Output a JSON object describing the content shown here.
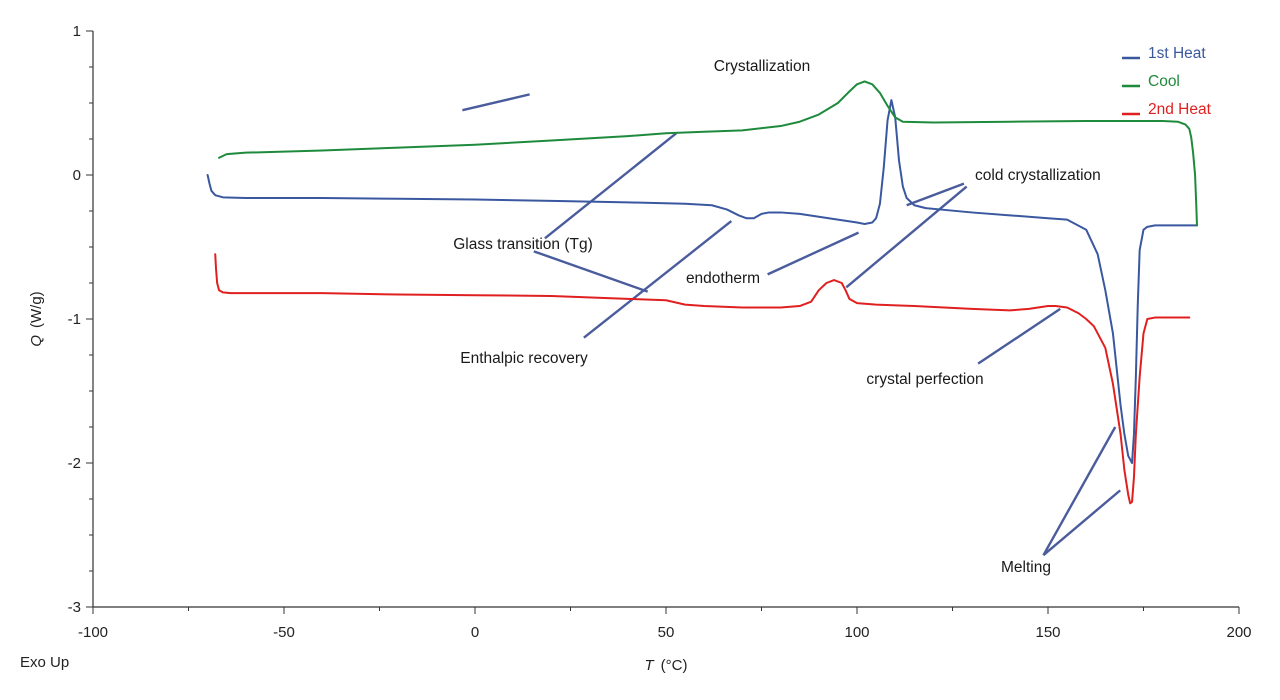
{
  "chart_data": {
    "type": "line",
    "xlabel_var": "T",
    "xlabel_unit": "(°C)",
    "ylabel_var": "Q",
    "ylabel_unit": "(W/g)",
    "xlim": [
      -100,
      200
    ],
    "ylim": [
      -3,
      1
    ],
    "x_ticks": [
      -100,
      -50,
      0,
      50,
      100,
      150,
      200
    ],
    "y_ticks": [
      -3,
      -2,
      -1,
      0,
      1
    ],
    "corner_note": "Exo Up",
    "grid": false,
    "legend_position": "top-right",
    "series": [
      {
        "name": "1st Heat",
        "color": "#3a58a0",
        "x": [
          -70,
          -69.5,
          -69,
          -68,
          -66,
          -60,
          -40,
          -20,
          0,
          20,
          40,
          55,
          62,
          66,
          69,
          71,
          73,
          75,
          77,
          80,
          85,
          90,
          95,
          100,
          102,
          104,
          105,
          106,
          107,
          108,
          109,
          110,
          111,
          112,
          113,
          115,
          118,
          122,
          130,
          140,
          150,
          155,
          160,
          163,
          165,
          167,
          168,
          169,
          170,
          171,
          172,
          172.5,
          173,
          173.5,
          174,
          175,
          176,
          178,
          180,
          185,
          189
        ],
        "y": [
          0,
          -0.06,
          -0.11,
          -0.14,
          -0.155,
          -0.16,
          -0.16,
          -0.165,
          -0.17,
          -0.18,
          -0.19,
          -0.2,
          -0.21,
          -0.24,
          -0.28,
          -0.3,
          -0.3,
          -0.27,
          -0.26,
          -0.26,
          -0.27,
          -0.29,
          -0.31,
          -0.33,
          -0.34,
          -0.33,
          -0.3,
          -0.2,
          0.05,
          0.38,
          0.52,
          0.4,
          0.1,
          -0.08,
          -0.16,
          -0.21,
          -0.23,
          -0.24,
          -0.26,
          -0.28,
          -0.3,
          -0.31,
          -0.38,
          -0.55,
          -0.8,
          -1.1,
          -1.35,
          -1.6,
          -1.8,
          -1.95,
          -2.0,
          -1.8,
          -1.4,
          -0.9,
          -0.52,
          -0.38,
          -0.36,
          -0.35,
          -0.35,
          -0.35,
          -0.35
        ]
      },
      {
        "name": "Cool",
        "color": "#1e8a3c",
        "x": [
          189,
          188.8,
          188.5,
          188,
          187.5,
          187,
          186,
          184,
          180,
          160,
          140,
          120,
          112,
          110,
          108,
          106,
          104,
          102,
          100,
          98,
          95,
          90,
          85,
          80,
          70,
          60,
          50,
          40,
          20,
          0,
          -20,
          -40,
          -60,
          -65,
          -67
        ],
        "y": [
          -0.35,
          -0.2,
          0.0,
          0.15,
          0.26,
          0.32,
          0.35,
          0.37,
          0.375,
          0.375,
          0.37,
          0.365,
          0.37,
          0.4,
          0.48,
          0.57,
          0.63,
          0.65,
          0.63,
          0.58,
          0.5,
          0.42,
          0.37,
          0.34,
          0.31,
          0.3,
          0.29,
          0.27,
          0.24,
          0.21,
          0.19,
          0.17,
          0.155,
          0.145,
          0.12
        ]
      },
      {
        "name": "2nd Heat",
        "color": "#e02020",
        "x": [
          -68,
          -67.8,
          -67.5,
          -67,
          -66,
          -64,
          -60,
          -40,
          -20,
          0,
          20,
          40,
          50,
          55,
          60,
          70,
          80,
          85,
          88,
          90,
          92,
          94,
          96,
          97,
          98,
          100,
          105,
          115,
          130,
          140,
          145,
          150,
          152,
          155,
          158,
          160,
          162,
          165,
          167,
          169,
          170,
          171,
          171.5,
          172,
          172.5,
          173,
          174,
          175,
          176,
          178,
          180,
          187
        ],
        "y": [
          -0.55,
          -0.65,
          -0.75,
          -0.8,
          -0.815,
          -0.82,
          -0.82,
          -0.82,
          -0.83,
          -0.835,
          -0.84,
          -0.86,
          -0.87,
          -0.9,
          -0.91,
          -0.92,
          -0.92,
          -0.91,
          -0.88,
          -0.8,
          -0.75,
          -0.73,
          -0.75,
          -0.8,
          -0.86,
          -0.89,
          -0.9,
          -0.91,
          -0.93,
          -0.94,
          -0.93,
          -0.91,
          -0.91,
          -0.92,
          -0.96,
          -1.0,
          -1.05,
          -1.2,
          -1.45,
          -1.8,
          -2.05,
          -2.22,
          -2.28,
          -2.27,
          -2.1,
          -1.8,
          -1.4,
          -1.1,
          -1.0,
          -0.99,
          -0.99,
          -0.99
        ]
      }
    ],
    "annotations": [
      {
        "text": "Crystallization"
      },
      {
        "text": "cold crystallization"
      },
      {
        "text": "Glass transition (Tg)"
      },
      {
        "text": "endotherm"
      },
      {
        "text": "Enthalpic recovery"
      },
      {
        "text": "crystal perfection"
      },
      {
        "text": "Melting"
      }
    ]
  }
}
